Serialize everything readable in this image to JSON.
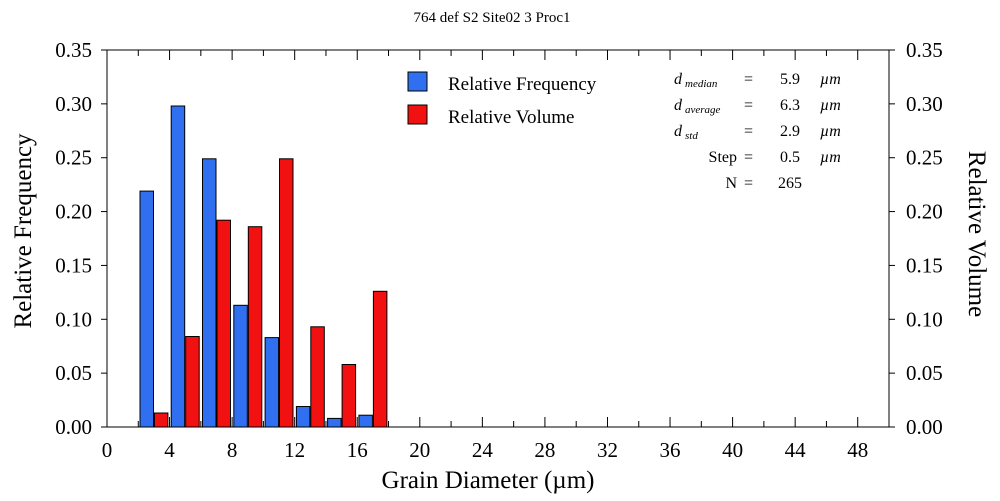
{
  "chart_data": {
    "type": "bar",
    "title": "764 def S2 Site02 3 Proc1",
    "xlabel": "Grain Diameter (µm)",
    "ylabel_left": "Relative Frequency",
    "ylabel_right": "Relative Volume",
    "xlim": [
      0,
      50
    ],
    "ylim": [
      0,
      0.35
    ],
    "x_ticks": [
      0,
      4,
      8,
      12,
      16,
      20,
      24,
      28,
      32,
      36,
      40,
      44,
      48
    ],
    "y_ticks": [
      "0.00",
      "0.05",
      "0.10",
      "0.15",
      "0.20",
      "0.25",
      "0.30",
      "0.35"
    ],
    "bin_centers": [
      3,
      5,
      7,
      9,
      11,
      13,
      15,
      17
    ],
    "series": [
      {
        "name": "Relative Frequency",
        "color": "#2f6ff0",
        "values": [
          0.219,
          0.298,
          0.249,
          0.113,
          0.083,
          0.019,
          0.008,
          0.011
        ]
      },
      {
        "name": "Relative Volume",
        "color": "#f21111",
        "values": [
          0.013,
          0.084,
          0.192,
          0.186,
          0.249,
          0.093,
          0.058,
          0.126
        ]
      }
    ],
    "stats": [
      {
        "sym": "d",
        "sub": "median",
        "val": "5.9",
        "unit": "µm"
      },
      {
        "sym": "d",
        "sub": "average",
        "val": "6.3",
        "unit": "µm"
      },
      {
        "sym": "d",
        "sub": "std",
        "val": "2.9",
        "unit": "µm"
      },
      {
        "label": "Step",
        "val": "0.5",
        "unit": "µm"
      },
      {
        "label": "N",
        "val": "265",
        "unit": ""
      }
    ],
    "eq": "="
  }
}
